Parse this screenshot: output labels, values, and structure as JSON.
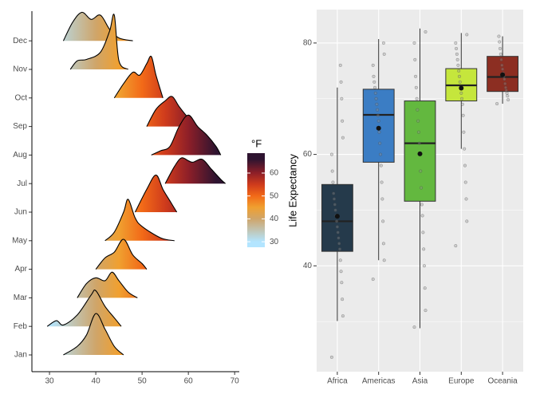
{
  "chart_data": [
    {
      "type": "ridgeline",
      "xlim": [
        26.2,
        71
      ],
      "xticks": [
        30,
        40,
        50,
        60,
        70
      ],
      "series": [
        {
          "name": "Jan",
          "x": [
            33,
            36,
            38,
            40,
            42,
            44,
            46
          ],
          "values": [
            0,
            0.3,
            0.7,
            1.45,
            0.9,
            0.3,
            0
          ]
        },
        {
          "name": "Feb",
          "x": [
            29.5,
            31.5,
            33,
            36,
            39,
            40,
            42,
            44,
            45.5
          ],
          "values": [
            0,
            0.2,
            0.05,
            0.4,
            1.1,
            1.25,
            0.7,
            0.3,
            0
          ]
        },
        {
          "name": "Mar",
          "x": [
            36,
            38,
            40,
            42,
            43.5,
            45,
            47,
            49
          ],
          "values": [
            0,
            0.5,
            0.7,
            0.6,
            0.9,
            0.6,
            0.2,
            0
          ]
        },
        {
          "name": "Apr",
          "x": [
            40,
            42,
            44,
            46,
            48,
            50,
            51
          ],
          "values": [
            0,
            0.4,
            0.6,
            1.05,
            0.5,
            0.2,
            0
          ]
        },
        {
          "name": "May",
          "x": [
            42,
            44,
            46,
            47,
            48.5,
            50,
            54,
            57
          ],
          "values": [
            0,
            0.3,
            1.0,
            1.45,
            0.8,
            0.5,
            0.1,
            0
          ]
        },
        {
          "name": "Jun",
          "x": [
            48.5,
            51,
            53,
            54.5,
            56,
            57.5
          ],
          "values": [
            0,
            0.8,
            1.3,
            0.8,
            0.4,
            0
          ]
        },
        {
          "name": "Jul",
          "x": [
            55,
            57,
            58.5,
            60,
            61,
            63,
            65,
            67,
            68
          ],
          "values": [
            0,
            0.6,
            0.9,
            0.8,
            0.75,
            0.85,
            0.5,
            0.15,
            0
          ]
        },
        {
          "name": "Aug",
          "x": [
            52,
            54,
            56,
            58,
            60,
            62,
            64,
            66,
            67
          ],
          "values": [
            0,
            0.15,
            0.3,
            1.0,
            1.4,
            1.0,
            0.7,
            0.3,
            0
          ]
        },
        {
          "name": "Sep",
          "x": [
            51,
            53,
            55,
            56.5,
            58,
            60,
            62
          ],
          "values": [
            0,
            0.6,
            0.9,
            1.05,
            0.7,
            0.3,
            0
          ]
        },
        {
          "name": "Oct",
          "x": [
            44,
            46,
            48,
            49.5,
            51,
            52,
            53,
            54.5
          ],
          "values": [
            0,
            0.5,
            0.9,
            0.8,
            1.2,
            1.45,
            0.8,
            0
          ]
        },
        {
          "name": "Nov",
          "x": [
            34.5,
            36,
            38,
            41,
            43,
            44,
            45,
            47
          ],
          "values": [
            0,
            0.3,
            0.35,
            0.6,
            1.35,
            1.9,
            0.3,
            0
          ]
        },
        {
          "name": "Dec",
          "x": [
            33,
            35,
            37,
            39,
            41,
            43,
            45,
            48
          ],
          "values": [
            0,
            0.65,
            1.0,
            0.75,
            0.9,
            0.4,
            0.1,
            0
          ]
        }
      ],
      "colorbar": {
        "title": "°F",
        "lim": [
          27.6,
          68.7
        ],
        "ticks": [
          30,
          40,
          50,
          60
        ],
        "stops": [
          {
            "value": 30,
            "color": "#b3e5ff"
          },
          {
            "value": 40,
            "color": "#cfa56a"
          },
          {
            "value": 45,
            "color": "#f0a030"
          },
          {
            "value": 50,
            "color": "#f26a18"
          },
          {
            "value": 55,
            "color": "#cf3b1c"
          },
          {
            "value": 60,
            "color": "#8e1f28"
          },
          {
            "value": 66,
            "color": "#2e1430"
          }
        ]
      }
    },
    {
      "type": "box",
      "ylabel": "Life Expectancy",
      "ylim": [
        21,
        86
      ],
      "yticks": [
        40,
        60,
        80
      ],
      "yminorticks": [
        30,
        50,
        70
      ],
      "grid": true,
      "categories": [
        "Africa",
        "Americas",
        "Asia",
        "Europe",
        "Oceania"
      ],
      "boxes": [
        {
          "color": "#253a4b",
          "whisker_low": 30.1,
          "q1": 42.6,
          "median": 48.0,
          "q3": 54.6,
          "whisker_high": 72.0,
          "mean": 48.9,
          "points": [
            23.6,
            31,
            34,
            37,
            39,
            41,
            43,
            44,
            45,
            46,
            47,
            48,
            49,
            50,
            51,
            52,
            53,
            55,
            57,
            60,
            63,
            66,
            70,
            73,
            76
          ]
        },
        {
          "color": "#3b7dc4",
          "whisker_low": 41,
          "q1": 58.6,
          "median": 67.1,
          "q3": 71.7,
          "whisker_high": 80.7,
          "mean": 64.7,
          "points": [
            37.6,
            41,
            44,
            48,
            52,
            55,
            58,
            60,
            62,
            64,
            66,
            67,
            68,
            69,
            70,
            71,
            72,
            73,
            74,
            76,
            78,
            80
          ]
        },
        {
          "color": "#63b83f",
          "whisker_low": 28.8,
          "q1": 51.6,
          "median": 62.0,
          "q3": 69.6,
          "whisker_high": 82.6,
          "mean": 60.1,
          "points": [
            29,
            32,
            36,
            40,
            43,
            46,
            49,
            51,
            54,
            57,
            60,
            62,
            64,
            66,
            68,
            70,
            72,
            74,
            77,
            80,
            82
          ]
        },
        {
          "color": "#c5e63c",
          "whisker_low": 61,
          "q1": 69.6,
          "median": 72.4,
          "q3": 75.4,
          "whisker_high": 81.8,
          "mean": 71.9,
          "points": [
            43.6,
            48,
            52,
            55,
            58,
            61,
            64,
            67,
            69,
            70,
            71,
            72,
            73,
            74,
            75,
            76,
            77,
            78,
            79,
            80,
            81.5
          ]
        },
        {
          "color": "#8c2e22",
          "whisker_low": 69.1,
          "q1": 71.3,
          "median": 73.9,
          "q3": 77.6,
          "whisker_high": 81.2,
          "mean": 74.3,
          "points": [
            69.1,
            69.8,
            70.5,
            71,
            71.5,
            72,
            72.7,
            73.5,
            74,
            74.6,
            75.3,
            76,
            77,
            78,
            79,
            80.2,
            81.2
          ]
        }
      ]
    }
  ]
}
